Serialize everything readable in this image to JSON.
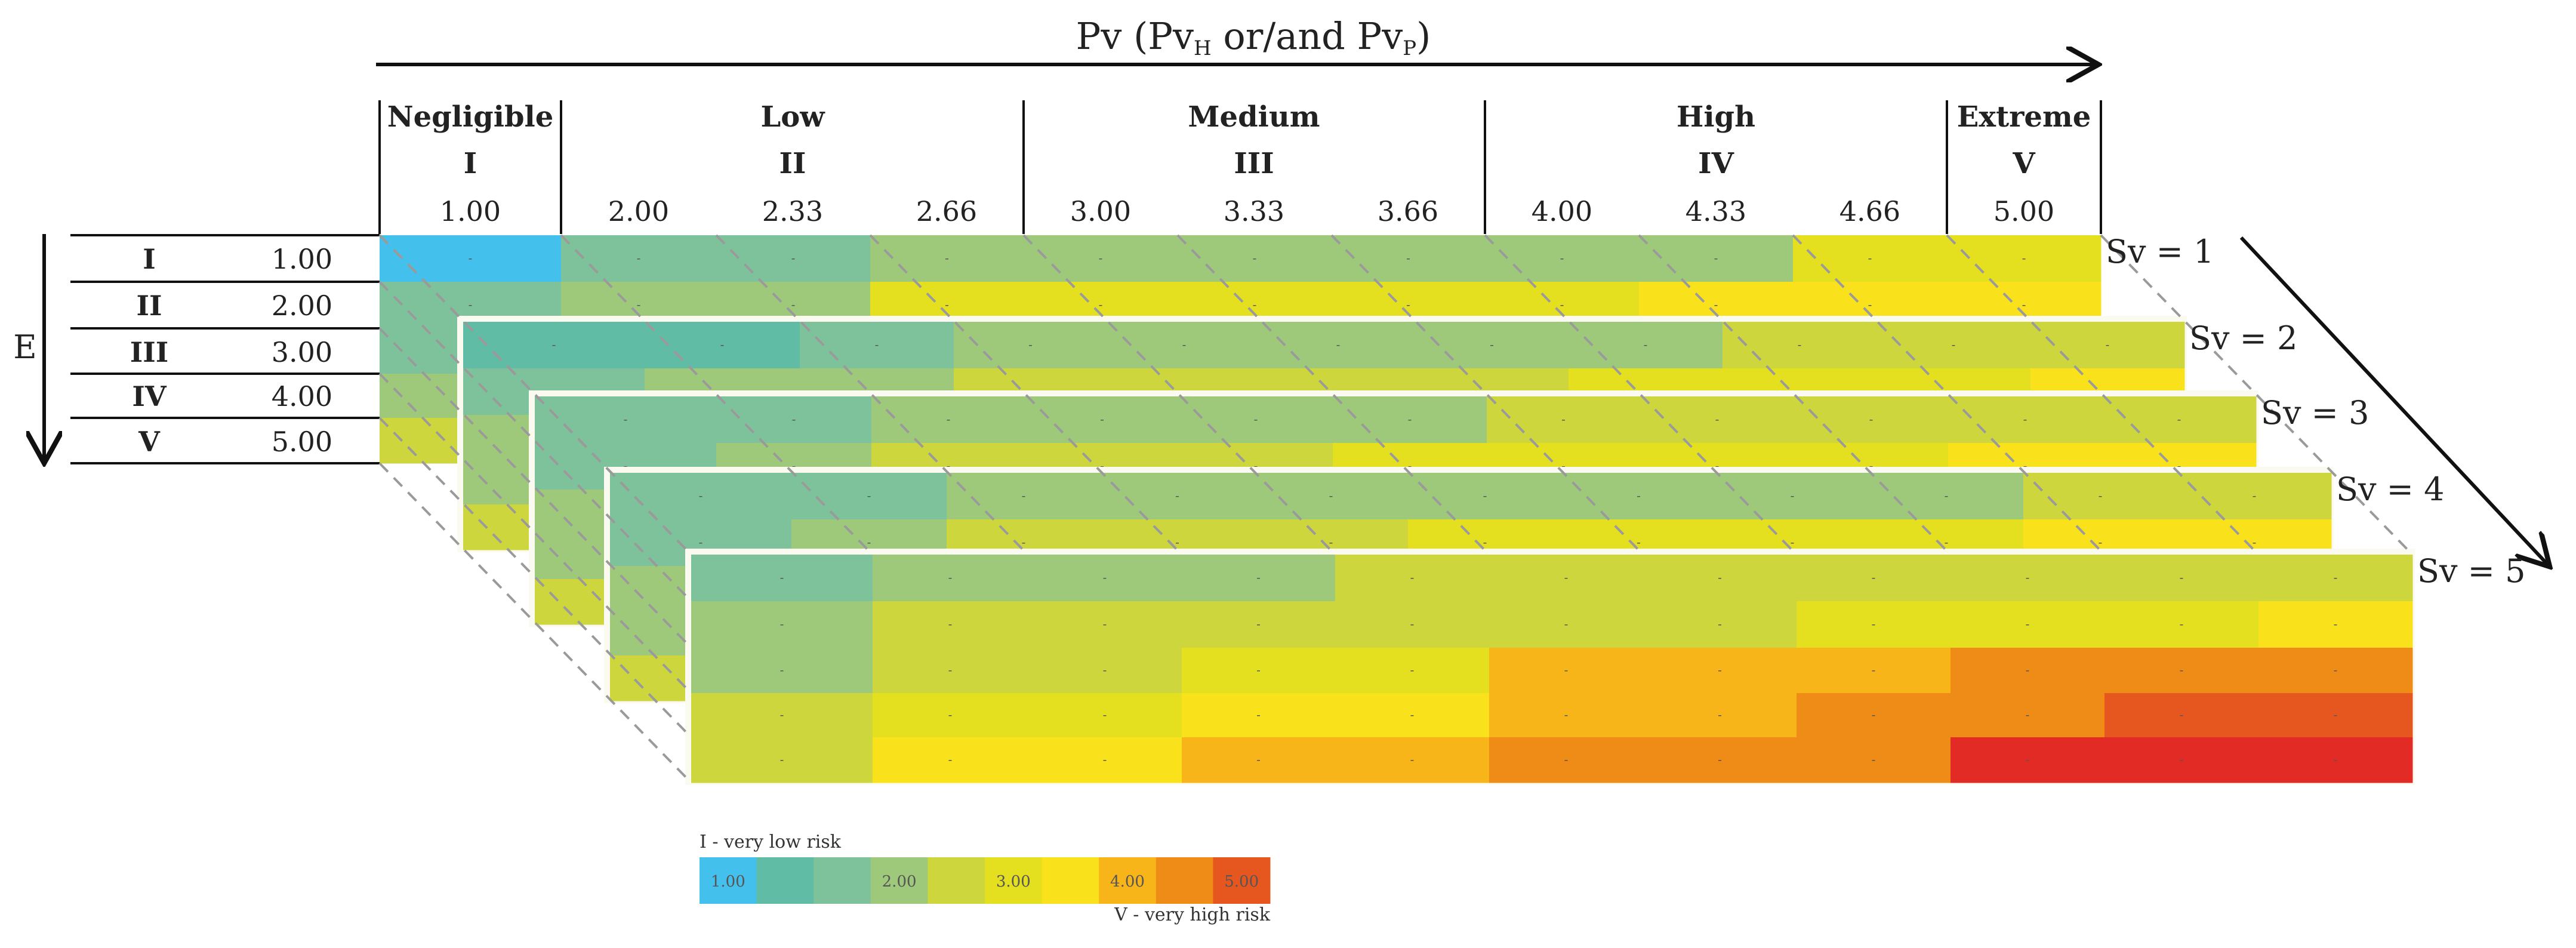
{
  "header": {
    "title_main": "Pv (Pv",
    "title_sub1": "H",
    "title_mid": " or/and Pv",
    "title_sub2": "P",
    "title_end": ")",
    "categories": [
      {
        "name": "Negligible",
        "numeral": "I"
      },
      {
        "name": "Low",
        "numeral": "II"
      },
      {
        "name": "Medium",
        "numeral": "III"
      },
      {
        "name": "High",
        "numeral": "IV"
      },
      {
        "name": "Extreme",
        "numeral": "V"
      }
    ],
    "values": [
      "1.00",
      "2.00",
      "2.33",
      "2.66",
      "3.00",
      "3.33",
      "3.66",
      "4.00",
      "4.33",
      "4.66",
      "5.00"
    ]
  },
  "e_axis": {
    "label": "E",
    "rows": [
      {
        "numeral": "I",
        "value": "1.00"
      },
      {
        "numeral": "II",
        "value": "2.00"
      },
      {
        "numeral": "III",
        "value": "3.00"
      },
      {
        "numeral": "IV",
        "value": "4.00"
      },
      {
        "numeral": "V",
        "value": "5.00"
      }
    ]
  },
  "layers": [
    {
      "label": "Sv = 1",
      "rows": [
        [
          1,
          3,
          3,
          4,
          4,
          4,
          4,
          4,
          4,
          6,
          6
        ],
        [
          3,
          4,
          4,
          6,
          6,
          6,
          6,
          6,
          7,
          7,
          7
        ],
        [
          3,
          4,
          6,
          6,
          6,
          6,
          7,
          7,
          7,
          8,
          8
        ],
        [
          4,
          5,
          6,
          6,
          7,
          7,
          7,
          8,
          8,
          8,
          9
        ],
        [
          5,
          6,
          6,
          7,
          7,
          8,
          8,
          8,
          9,
          9,
          10
        ]
      ]
    },
    {
      "label": "Sv = 2",
      "rows": [
        [
          2,
          2,
          3,
          4,
          4,
          4,
          4,
          4,
          5,
          5,
          5
        ],
        [
          3,
          4,
          4,
          5,
          5,
          5,
          5,
          6,
          6,
          6,
          7
        ],
        [
          4,
          4,
          5,
          5,
          6,
          6,
          6,
          7,
          7,
          7,
          8
        ],
        [
          4,
          5,
          5,
          6,
          6,
          7,
          7,
          7,
          8,
          8,
          9
        ],
        [
          5,
          5,
          6,
          6,
          7,
          7,
          8,
          8,
          9,
          9,
          10
        ]
      ]
    },
    {
      "label": "Sv = 3",
      "rows": [
        [
          3,
          3,
          4,
          4,
          4,
          4,
          5,
          5,
          5,
          5,
          5
        ],
        [
          3,
          4,
          5,
          5,
          5,
          6,
          6,
          6,
          6,
          7,
          7
        ],
        [
          4,
          5,
          5,
          6,
          6,
          6,
          7,
          7,
          7,
          8,
          8
        ],
        [
          4,
          5,
          6,
          6,
          7,
          7,
          8,
          8,
          8,
          9,
          9
        ],
        [
          5,
          6,
          6,
          7,
          7,
          8,
          8,
          9,
          9,
          10,
          10
        ]
      ]
    },
    {
      "label": "Sv = 4",
      "rows": [
        [
          3,
          3,
          4,
          4,
          4,
          4,
          4,
          4,
          4,
          5,
          5
        ],
        [
          3,
          4,
          5,
          5,
          5,
          6,
          6,
          6,
          6,
          7,
          7
        ],
        [
          4,
          5,
          5,
          6,
          6,
          6,
          7,
          7,
          7,
          8,
          8
        ],
        [
          4,
          5,
          6,
          6,
          7,
          7,
          8,
          8,
          8,
          9,
          9
        ],
        [
          5,
          6,
          6,
          7,
          7,
          8,
          8,
          9,
          9,
          10,
          10
        ]
      ]
    },
    {
      "label": "Sv = 5",
      "rows": [
        [
          3,
          4,
          4,
          4,
          5,
          5,
          5,
          5,
          5,
          5,
          5
        ],
        [
          4,
          5,
          5,
          5,
          5,
          5,
          5,
          6,
          6,
          6,
          7
        ],
        [
          4,
          5,
          5,
          6,
          6,
          8,
          8,
          8,
          9,
          9,
          9
        ],
        [
          5,
          6,
          6,
          7,
          7,
          8,
          8,
          9,
          9,
          10,
          10
        ],
        [
          5,
          7,
          7,
          8,
          8,
          9,
          9,
          9,
          11,
          11,
          11
        ]
      ]
    }
  ],
  "legend": {
    "top_label": "I - very low risk",
    "bottom_label": "V - very high risk",
    "labels": [
      "1.00",
      "",
      "",
      "2.00",
      "",
      "3.00",
      "",
      "4.00",
      "",
      "5.00"
    ]
  },
  "palette": [
    "#ffffff",
    "#44c0ec",
    "#61bca6",
    "#7dc29a",
    "#9ec97a",
    "#cdd63c",
    "#e4df1f",
    "#f9e11b",
    "#f8b51a",
    "#ef8c18",
    "#e6571f",
    "#e22b25"
  ]
}
